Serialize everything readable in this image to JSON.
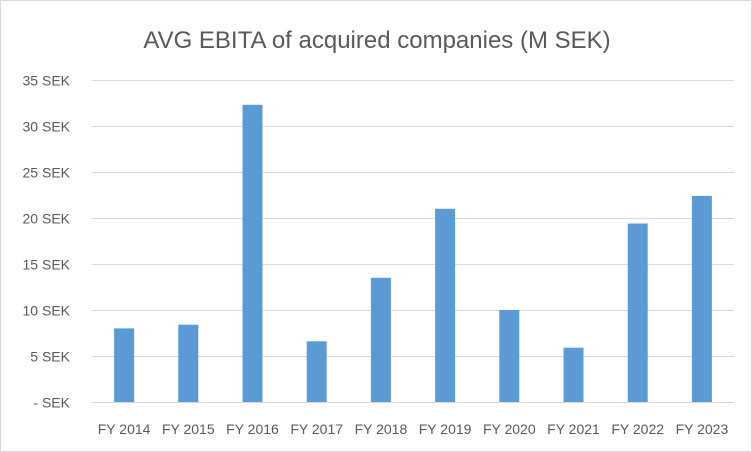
{
  "chart_data": {
    "type": "bar",
    "title": "AVG EBITA of acquired companies (M SEK)",
    "xlabel": "",
    "ylabel": "",
    "categories": [
      "FY 2014",
      "FY 2015",
      "FY 2016",
      "FY 2017",
      "FY 2018",
      "FY 2019",
      "FY 2020",
      "FY 2021",
      "FY 2022",
      "FY 2023"
    ],
    "series": [
      {
        "name": "AVG EBITA",
        "values": [
          8.0,
          8.4,
          32.3,
          6.6,
          13.5,
          21.0,
          10.0,
          5.9,
          19.4,
          22.4
        ]
      }
    ],
    "ylim": [
      0,
      35
    ],
    "yticks": [
      0,
      5,
      10,
      15,
      20,
      25,
      30,
      35
    ],
    "ytick_labels": [
      "- SEK",
      "5 SEK",
      "10 SEK",
      "15 SEK",
      "20 SEK",
      "25 SEK",
      "30 SEK",
      "35 SEK"
    ],
    "grid": true,
    "legend": "none",
    "colors": {
      "bar": "#5b9bd5",
      "grid": "#d9d9d9",
      "text": "#595959"
    }
  }
}
